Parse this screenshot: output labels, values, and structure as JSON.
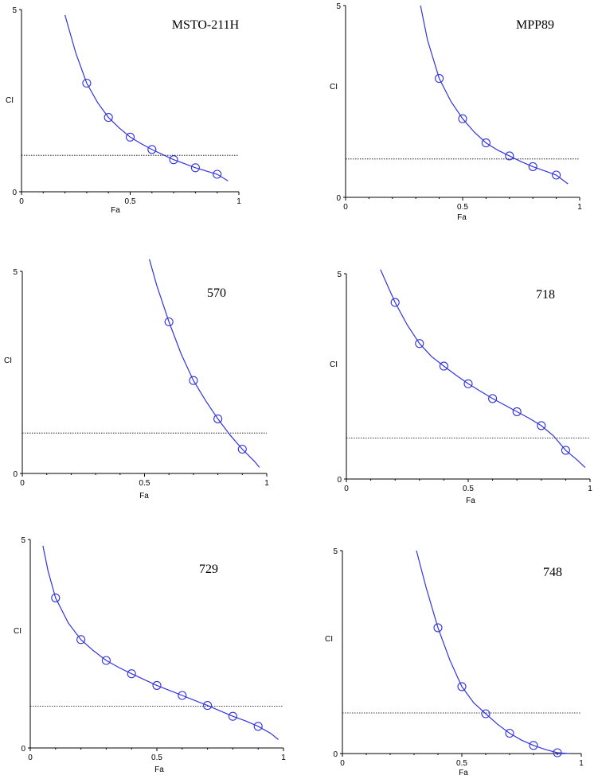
{
  "chart_data": [
    {
      "type": "line",
      "title": "MSTO-211H",
      "xlabel": "Fa",
      "ylabel": "CI",
      "xlim": [
        0,
        1
      ],
      "ylim": [
        0,
        5
      ],
      "x_ticks": [
        "0",
        "0.5",
        "1"
      ],
      "y_ticks": [
        "0",
        "5"
      ],
      "reference_line": 1,
      "points": {
        "x": [
          0.3,
          0.4,
          0.5,
          0.6,
          0.7,
          0.8,
          0.9
        ],
        "y": [
          2.98,
          2.04,
          1.5,
          1.16,
          0.88,
          0.66,
          0.48
        ]
      },
      "curve": {
        "x": [
          0.2,
          0.25,
          0.3,
          0.35,
          0.4,
          0.45,
          0.5,
          0.55,
          0.6,
          0.65,
          0.7,
          0.75,
          0.8,
          0.85,
          0.9,
          0.95
        ],
        "y": [
          4.85,
          3.8,
          2.98,
          2.45,
          2.04,
          1.75,
          1.5,
          1.32,
          1.16,
          1.02,
          0.88,
          0.77,
          0.66,
          0.57,
          0.48,
          0.3
        ]
      },
      "colors": {
        "curve": "#3333dd",
        "reference": "#000000"
      }
    },
    {
      "type": "line",
      "title": "MPP89",
      "xlabel": "Fa",
      "ylabel": "CI",
      "xlim": [
        0,
        1
      ],
      "ylim": [
        0,
        5
      ],
      "x_ticks": [
        "0",
        "0.5",
        "1"
      ],
      "y_ticks": [
        "0",
        "5"
      ],
      "reference_line": 1,
      "points": {
        "x": [
          0.4,
          0.5,
          0.6,
          0.7,
          0.8,
          0.9
        ],
        "y": [
          3.1,
          2.05,
          1.42,
          1.08,
          0.8,
          0.58
        ]
      },
      "curve": {
        "x": [
          0.32,
          0.35,
          0.4,
          0.45,
          0.5,
          0.55,
          0.6,
          0.65,
          0.7,
          0.75,
          0.8,
          0.85,
          0.9,
          0.95
        ],
        "y": [
          5.0,
          4.1,
          3.1,
          2.5,
          2.05,
          1.7,
          1.42,
          1.23,
          1.08,
          0.93,
          0.8,
          0.69,
          0.58,
          0.35
        ]
      },
      "colors": {
        "curve": "#3333dd",
        "reference": "#000000"
      }
    },
    {
      "type": "line",
      "title": "570",
      "xlabel": "Fa",
      "ylabel": "CI",
      "xlim": [
        0,
        1
      ],
      "ylim": [
        0,
        5
      ],
      "x_ticks": [
        "0",
        "0.5",
        "1"
      ],
      "y_ticks": [
        "0",
        "5"
      ],
      "reference_line": 1,
      "points": {
        "x": [
          0.6,
          0.7,
          0.8,
          0.9
        ],
        "y": [
          3.75,
          2.3,
          1.35,
          0.6
        ]
      },
      "curve": {
        "x": [
          0.52,
          0.55,
          0.6,
          0.65,
          0.7,
          0.75,
          0.8,
          0.85,
          0.9,
          0.95,
          0.97
        ],
        "y": [
          5.3,
          4.65,
          3.75,
          2.95,
          2.3,
          1.8,
          1.35,
          0.95,
          0.6,
          0.3,
          0.15
        ]
      },
      "colors": {
        "curve": "#3333dd",
        "reference": "#000000"
      }
    },
    {
      "type": "line",
      "title": "718",
      "xlabel": "Fa",
      "ylabel": "CI",
      "xlim": [
        0,
        1
      ],
      "ylim": [
        0,
        5
      ],
      "x_ticks": [
        "0",
        "0.5",
        "1"
      ],
      "y_ticks": [
        "0",
        "5"
      ],
      "reference_line": 1,
      "points": {
        "x": [
          0.2,
          0.3,
          0.4,
          0.5,
          0.6,
          0.7,
          0.8,
          0.9
        ],
        "y": [
          4.3,
          3.3,
          2.75,
          2.32,
          1.96,
          1.64,
          1.3,
          0.7
        ]
      },
      "curve": {
        "x": [
          0.14,
          0.17,
          0.2,
          0.25,
          0.3,
          0.35,
          0.4,
          0.45,
          0.5,
          0.55,
          0.6,
          0.65,
          0.7,
          0.75,
          0.8,
          0.85,
          0.9,
          0.95,
          0.98
        ],
        "y": [
          5.1,
          4.7,
          4.3,
          3.75,
          3.3,
          2.98,
          2.75,
          2.53,
          2.32,
          2.14,
          1.96,
          1.8,
          1.64,
          1.48,
          1.3,
          1.05,
          0.7,
          0.45,
          0.28
        ]
      },
      "colors": {
        "curve": "#3333dd",
        "reference": "#000000"
      }
    },
    {
      "type": "line",
      "title": "729",
      "xlabel": "Fa",
      "ylabel": "CI",
      "xlim": [
        0,
        1
      ],
      "ylim": [
        0,
        5
      ],
      "x_ticks": [
        "0",
        "0.5",
        "1"
      ],
      "y_ticks": [
        "0",
        "5"
      ],
      "reference_line": 1,
      "points": {
        "x": [
          0.1,
          0.2,
          0.3,
          0.4,
          0.5,
          0.6,
          0.7,
          0.8,
          0.9
        ],
        "y": [
          3.6,
          2.6,
          2.1,
          1.78,
          1.5,
          1.26,
          1.02,
          0.76,
          0.52
        ]
      },
      "curve": {
        "x": [
          0.05,
          0.07,
          0.1,
          0.15,
          0.2,
          0.25,
          0.3,
          0.35,
          0.4,
          0.45,
          0.5,
          0.55,
          0.6,
          0.65,
          0.7,
          0.75,
          0.8,
          0.85,
          0.9,
          0.95,
          0.98
        ],
        "y": [
          4.85,
          4.25,
          3.6,
          3.0,
          2.6,
          2.33,
          2.1,
          1.93,
          1.78,
          1.64,
          1.5,
          1.38,
          1.26,
          1.14,
          1.02,
          0.89,
          0.76,
          0.65,
          0.52,
          0.35,
          0.2
        ]
      },
      "colors": {
        "curve": "#3333dd",
        "reference": "#000000"
      }
    },
    {
      "type": "line",
      "title": "748",
      "xlabel": "Fa",
      "ylabel": "CI",
      "xlim": [
        0,
        1
      ],
      "ylim": [
        0,
        5
      ],
      "x_ticks": [
        "0",
        "0.5",
        "1"
      ],
      "y_ticks": [
        "0",
        "5"
      ],
      "reference_line": 1,
      "points": {
        "x": [
          0.4,
          0.5,
          0.6,
          0.7,
          0.8,
          0.9
        ],
        "y": [
          3.1,
          1.65,
          0.98,
          0.5,
          0.2,
          0.02
        ]
      },
      "curve": {
        "x": [
          0.31,
          0.35,
          0.4,
          0.45,
          0.5,
          0.55,
          0.6,
          0.65,
          0.7,
          0.75,
          0.8,
          0.85,
          0.9,
          0.95
        ],
        "y": [
          5.0,
          4.1,
          3.1,
          2.3,
          1.65,
          1.25,
          0.98,
          0.72,
          0.5,
          0.33,
          0.2,
          0.1,
          0.02,
          0.0
        ]
      },
      "colors": {
        "curve": "#3333dd",
        "reference": "#000000"
      }
    }
  ]
}
